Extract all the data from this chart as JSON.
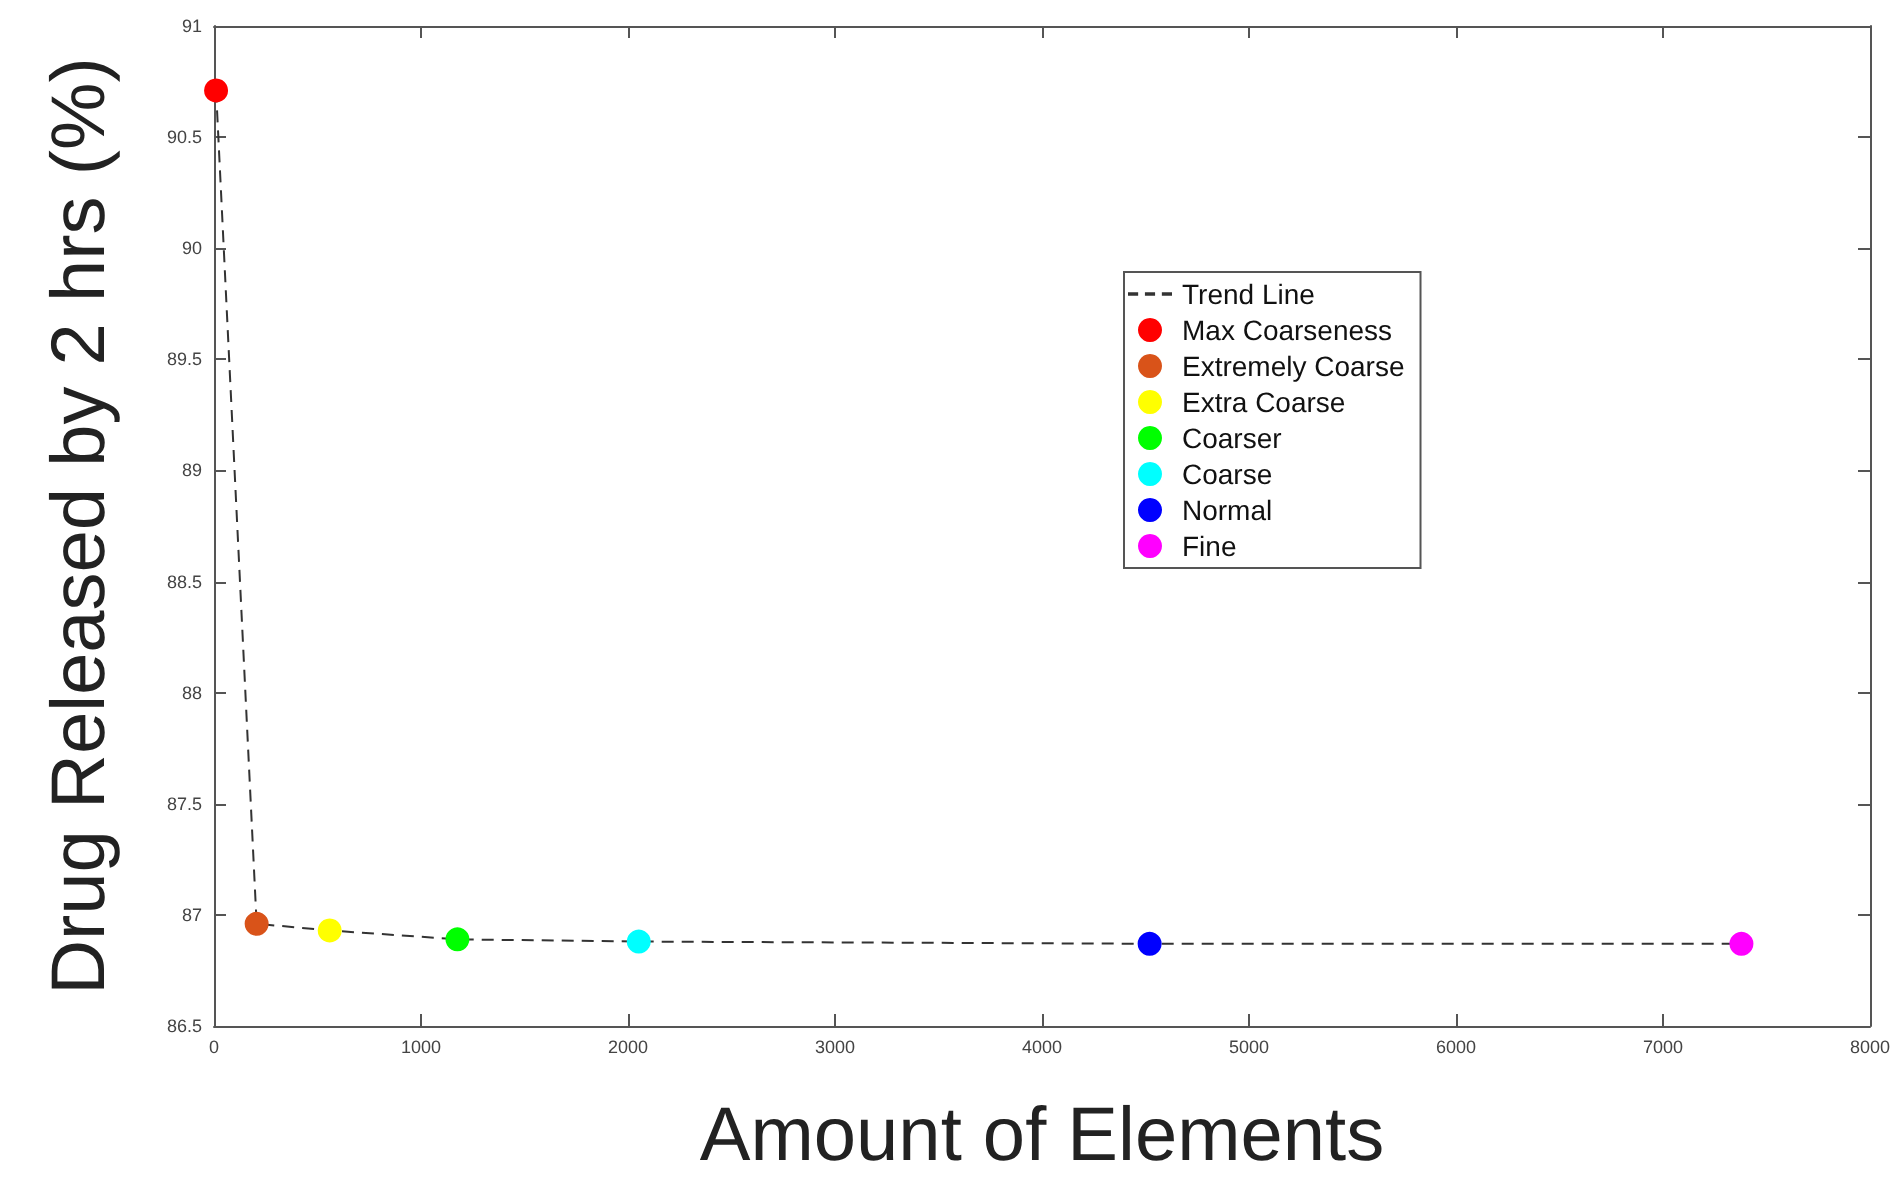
{
  "chart_data": {
    "type": "scatter",
    "xlabel": "Amount of Elements",
    "ylabel": "Drug Released by 2 hrs (%)",
    "xlim": [
      0,
      8000
    ],
    "xticks": [
      0,
      1000,
      2000,
      3000,
      4000,
      5000,
      6000,
      7000,
      8000
    ],
    "ylim": [
      86.5,
      91
    ],
    "yticks": [
      86.5,
      87,
      87.5,
      88,
      88.5,
      89,
      89.5,
      90,
      90.5,
      91
    ],
    "grid": false,
    "legend": "right",
    "marker": "circle",
    "series": [
      {
        "name": "Trend Line",
        "type": "line",
        "color": "#333333",
        "line_style": "dashed",
        "marker": "none",
        "x": [
          10,
          206,
          559,
          1176,
          2052,
          4520,
          7379
        ],
        "values": [
          90.71,
          86.96,
          86.93,
          86.89,
          86.88,
          86.87,
          86.87
        ]
      },
      {
        "name": "Max Coarseness",
        "color": "#ff0000",
        "x": [
          10
        ],
        "values": [
          90.71
        ]
      },
      {
        "name": "Extremely Coarse",
        "color": "#d95319",
        "x": [
          206
        ],
        "values": [
          86.96
        ]
      },
      {
        "name": "Extra Coarse",
        "color": "#ffff00",
        "x": [
          559
        ],
        "values": [
          86.93
        ]
      },
      {
        "name": "Coarser",
        "color": "#00ff00",
        "x": [
          1176
        ],
        "values": [
          86.89
        ]
      },
      {
        "name": "Coarse",
        "color": "#00ffff",
        "x": [
          2052
        ],
        "values": [
          86.88
        ]
      },
      {
        "name": "Normal",
        "color": "#0000ff",
        "x": [
          4520
        ],
        "values": [
          86.87
        ]
      },
      {
        "name": "Fine",
        "color": "#ff00ff",
        "x": [
          7379
        ],
        "values": [
          86.87
        ]
      }
    ]
  }
}
